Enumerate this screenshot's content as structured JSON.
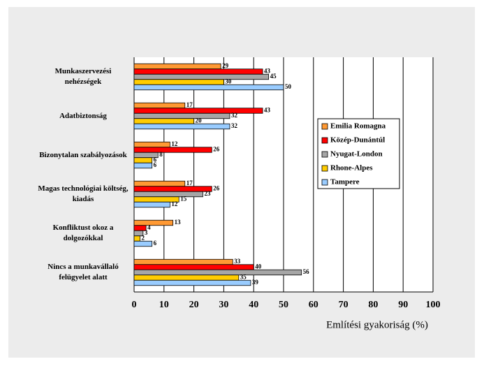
{
  "chart_data": {
    "type": "bar",
    "orientation": "horizontal",
    "x_label": "Említési gyakoriság (%)",
    "categories": [
      "Munkaszervezési nehézségek",
      "Adatbiztonság",
      "Bizonytalan szabályozások",
      "Magas technológiai költség, kiadás",
      "Konfliktust okoz a dolgozókkal",
      "Nincs a munkavállaló felügyelet alatt"
    ],
    "series": [
      {
        "name": "Emilia Romagna",
        "color": "#ff9933",
        "values": [
          29,
          17,
          12,
          17,
          13,
          33
        ]
      },
      {
        "name": "Közép-Dunántúl",
        "color": "#ff0000",
        "values": [
          43,
          43,
          26,
          26,
          4,
          40
        ]
      },
      {
        "name": "Nyugat-London",
        "color": "#a6a6a6",
        "values": [
          45,
          32,
          8,
          23,
          3,
          56
        ]
      },
      {
        "name": "Rhone-Alpes",
        "color": "#ffcc00",
        "values": [
          30,
          20,
          6,
          15,
          2,
          35
        ]
      },
      {
        "name": "Tampere",
        "color": "#99ccff",
        "values": [
          50,
          32,
          6,
          12,
          6,
          39
        ]
      }
    ],
    "xlim": [
      0,
      100
    ],
    "xticks": [
      0,
      10,
      20,
      30,
      40,
      50,
      60,
      70,
      80,
      90,
      100
    ],
    "grid": true
  }
}
